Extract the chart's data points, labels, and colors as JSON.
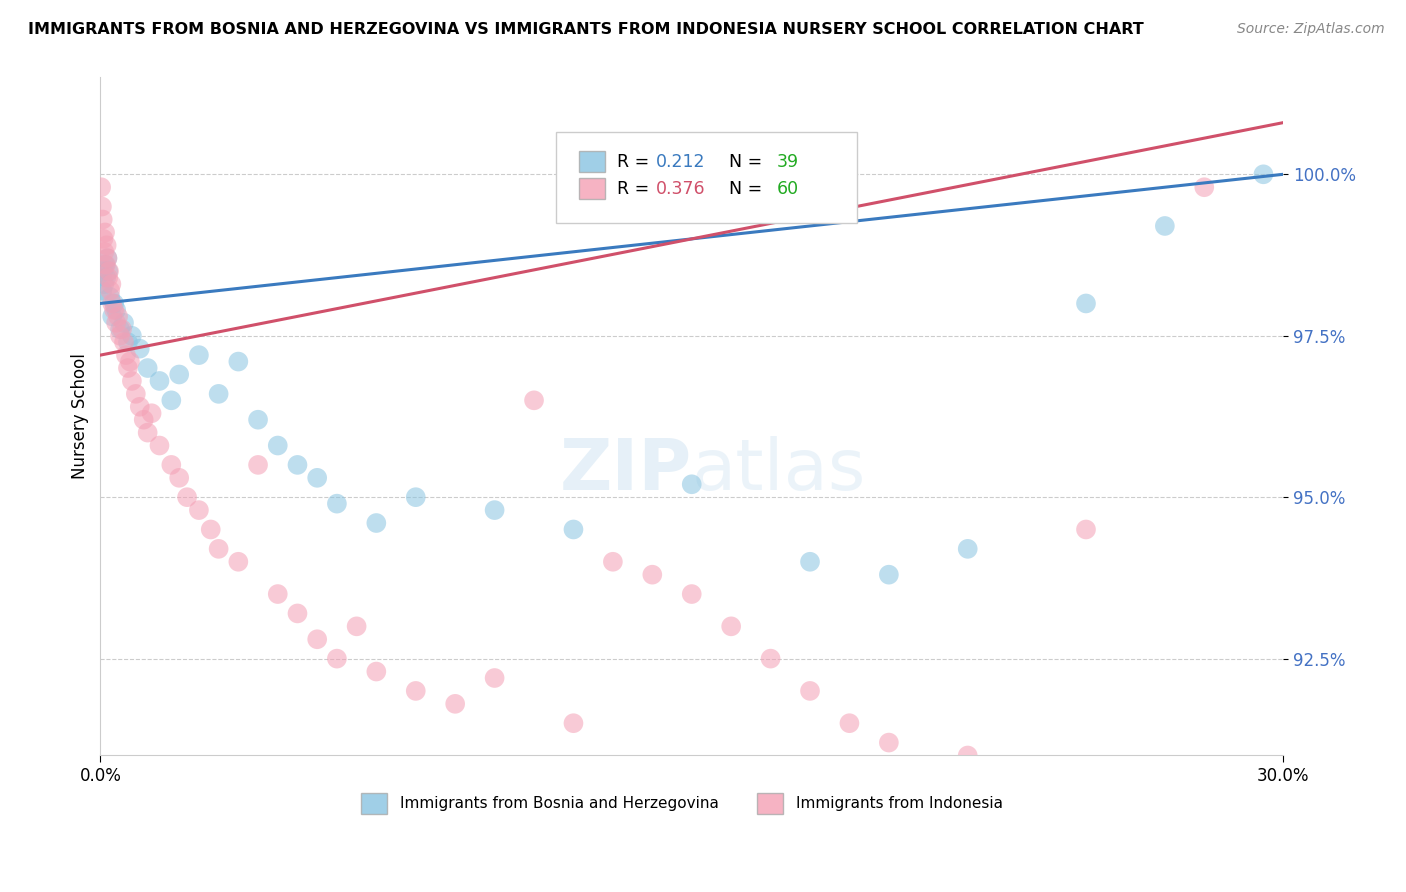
{
  "title": "IMMIGRANTS FROM BOSNIA AND HERZEGOVINA VS IMMIGRANTS FROM INDONESIA NURSERY SCHOOL CORRELATION CHART",
  "source": "Source: ZipAtlas.com",
  "ylabel": "Nursery School",
  "legend_bosnia": "Immigrants from Bosnia and Herzegovina",
  "legend_indonesia": "Immigrants from Indonesia",
  "R_bosnia": 0.212,
  "N_bosnia": 39,
  "R_indonesia": 0.376,
  "N_indonesia": 60,
  "bosnia_color": "#89c4e1",
  "indonesia_color": "#f4a0b5",
  "bosnia_line_color": "#3a7abf",
  "indonesia_line_color": "#d0506a",
  "xlim": [
    0.0,
    30.0
  ],
  "ylim": [
    91.0,
    101.5
  ],
  "yticks": [
    92.5,
    95.0,
    97.5,
    100.0
  ],
  "bosnia_x": [
    0.05,
    0.08,
    0.1,
    0.12,
    0.15,
    0.18,
    0.2,
    0.25,
    0.3,
    0.35,
    0.4,
    0.5,
    0.6,
    0.7,
    0.8,
    1.0,
    1.2,
    1.5,
    1.8,
    2.0,
    2.5,
    3.0,
    3.5,
    4.0,
    4.5,
    5.0,
    5.5,
    6.0,
    7.0,
    8.0,
    10.0,
    12.0,
    15.0,
    18.0,
    20.0,
    22.0,
    25.0,
    27.0,
    29.5
  ],
  "bosnia_y": [
    98.2,
    98.5,
    98.3,
    98.6,
    98.4,
    98.7,
    98.5,
    98.1,
    97.8,
    98.0,
    97.9,
    97.6,
    97.7,
    97.4,
    97.5,
    97.3,
    97.0,
    96.8,
    96.5,
    96.9,
    97.2,
    96.6,
    97.1,
    96.2,
    95.8,
    95.5,
    95.3,
    94.9,
    94.6,
    95.0,
    94.8,
    94.5,
    95.2,
    94.0,
    93.8,
    94.2,
    98.0,
    99.2,
    100.0
  ],
  "indonesia_x": [
    0.02,
    0.04,
    0.06,
    0.08,
    0.1,
    0.12,
    0.14,
    0.16,
    0.18,
    0.2,
    0.22,
    0.25,
    0.28,
    0.3,
    0.35,
    0.4,
    0.45,
    0.5,
    0.55,
    0.6,
    0.65,
    0.7,
    0.75,
    0.8,
    0.9,
    1.0,
    1.1,
    1.2,
    1.3,
    1.5,
    1.8,
    2.0,
    2.2,
    2.5,
    2.8,
    3.0,
    3.5,
    4.0,
    4.5,
    5.0,
    5.5,
    6.0,
    6.5,
    7.0,
    8.0,
    9.0,
    10.0,
    11.0,
    12.0,
    13.0,
    14.0,
    15.0,
    16.0,
    17.0,
    18.0,
    19.0,
    20.0,
    22.0,
    25.0,
    28.0
  ],
  "indonesia_y": [
    99.8,
    99.5,
    99.3,
    99.0,
    98.8,
    99.1,
    98.6,
    98.9,
    98.7,
    98.4,
    98.5,
    98.2,
    98.3,
    98.0,
    97.9,
    97.7,
    97.8,
    97.5,
    97.6,
    97.4,
    97.2,
    97.0,
    97.1,
    96.8,
    96.6,
    96.4,
    96.2,
    96.0,
    96.3,
    95.8,
    95.5,
    95.3,
    95.0,
    94.8,
    94.5,
    94.2,
    94.0,
    95.5,
    93.5,
    93.2,
    92.8,
    92.5,
    93.0,
    92.3,
    92.0,
    91.8,
    92.2,
    96.5,
    91.5,
    94.0,
    93.8,
    93.5,
    93.0,
    92.5,
    92.0,
    91.5,
    91.2,
    91.0,
    94.5,
    99.8
  ]
}
